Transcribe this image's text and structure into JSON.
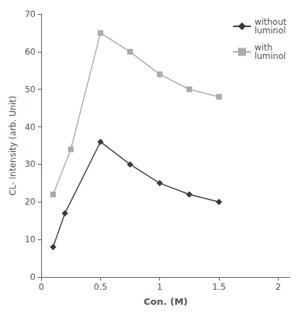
{
  "chart_data": {
    "type": "line",
    "xlabel": "Con. (M)",
    "ylabel": "CL- Intensity (arb. Unit)",
    "xlim": [
      0,
      2.1
    ],
    "ylim": [
      0,
      70
    ],
    "xticks": [
      0,
      0.5,
      1,
      1.5,
      2
    ],
    "yticks": [
      0,
      10,
      20,
      30,
      40,
      50,
      60,
      70
    ],
    "grid": false,
    "legend": "upper right",
    "series": [
      {
        "name": "without\nluminol",
        "color": "#3a3a3a",
        "marker": "diamond",
        "x": [
          0.1,
          0.2,
          0.5,
          0.75,
          1.0,
          1.25,
          1.5
        ],
        "values": [
          8,
          17,
          36,
          30,
          25,
          22,
          20
        ]
      },
      {
        "name": "with\nluminol",
        "color": "#aaaaaa",
        "marker": "square",
        "x": [
          0.1,
          0.25,
          0.5,
          0.75,
          1.0,
          1.25,
          1.5
        ],
        "values": [
          22,
          34,
          65,
          60,
          54,
          50,
          48
        ]
      }
    ]
  }
}
